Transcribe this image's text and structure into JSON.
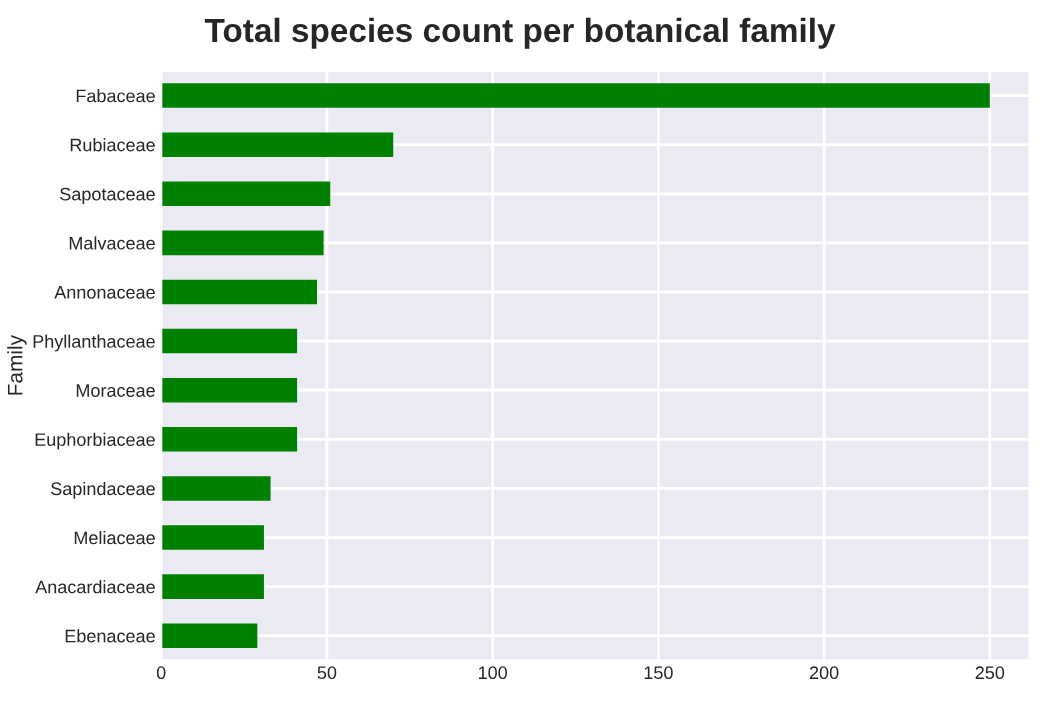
{
  "chart_data": {
    "type": "bar",
    "orientation": "horizontal",
    "title": "Total species count per botanical family",
    "ylabel": "Family",
    "categories": [
      "Fabaceae",
      "Rubiaceae",
      "Sapotaceae",
      "Malvaceae",
      "Annonaceae",
      "Phyllanthaceae",
      "Moraceae",
      "Euphorbiaceae",
      "Sapindaceae",
      "Meliaceae",
      "Anacardiaceae",
      "Ebenaceae"
    ],
    "values": [
      250,
      70,
      51,
      49,
      47,
      41,
      41,
      41,
      33,
      31,
      31,
      29
    ],
    "color": "#008000",
    "xlim": [
      0,
      262
    ],
    "xticks": [
      0,
      50,
      100,
      150,
      200,
      250
    ],
    "grid": true,
    "legend": false
  }
}
